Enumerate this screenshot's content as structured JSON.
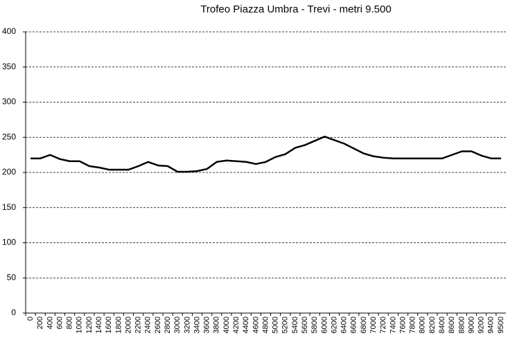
{
  "chart_data": {
    "type": "line",
    "title": "Trofeo Piazza  Umbra  - Trevi - metri 9.500",
    "categories": [
      "0",
      "200",
      "400",
      "600",
      "800",
      "1000",
      "1200",
      "1400",
      "1600",
      "1800",
      "2000",
      "2200",
      "2400",
      "2600",
      "2800",
      "3000",
      "3200",
      "3400",
      "3600",
      "3800",
      "4000",
      "4200",
      "4400",
      "4600",
      "4800",
      "5000",
      "5200",
      "5400",
      "5600",
      "5800",
      "6000",
      "6200",
      "6400",
      "6600",
      "6800",
      "7000",
      "7200",
      "7400",
      "7600",
      "7800",
      "8000",
      "8200",
      "8400",
      "8600",
      "8800",
      "9000",
      "9200",
      "9400",
      "9500"
    ],
    "values": [
      220,
      220,
      225,
      219,
      216,
      216,
      209,
      207,
      204,
      204,
      204,
      209,
      215,
      210,
      209,
      201,
      201,
      202,
      205,
      215,
      217,
      216,
      215,
      212,
      215,
      222,
      226,
      235,
      239,
      245,
      251,
      246,
      241,
      234,
      227,
      223,
      221,
      220,
      220,
      220,
      220,
      220,
      220,
      225,
      230,
      230,
      224,
      220,
      220
    ],
    "color": "#000000",
    "ylim": [
      0,
      400
    ],
    "yticks": [
      0,
      50,
      100,
      150,
      200,
      250,
      300,
      350,
      400
    ],
    "grid": true
  }
}
